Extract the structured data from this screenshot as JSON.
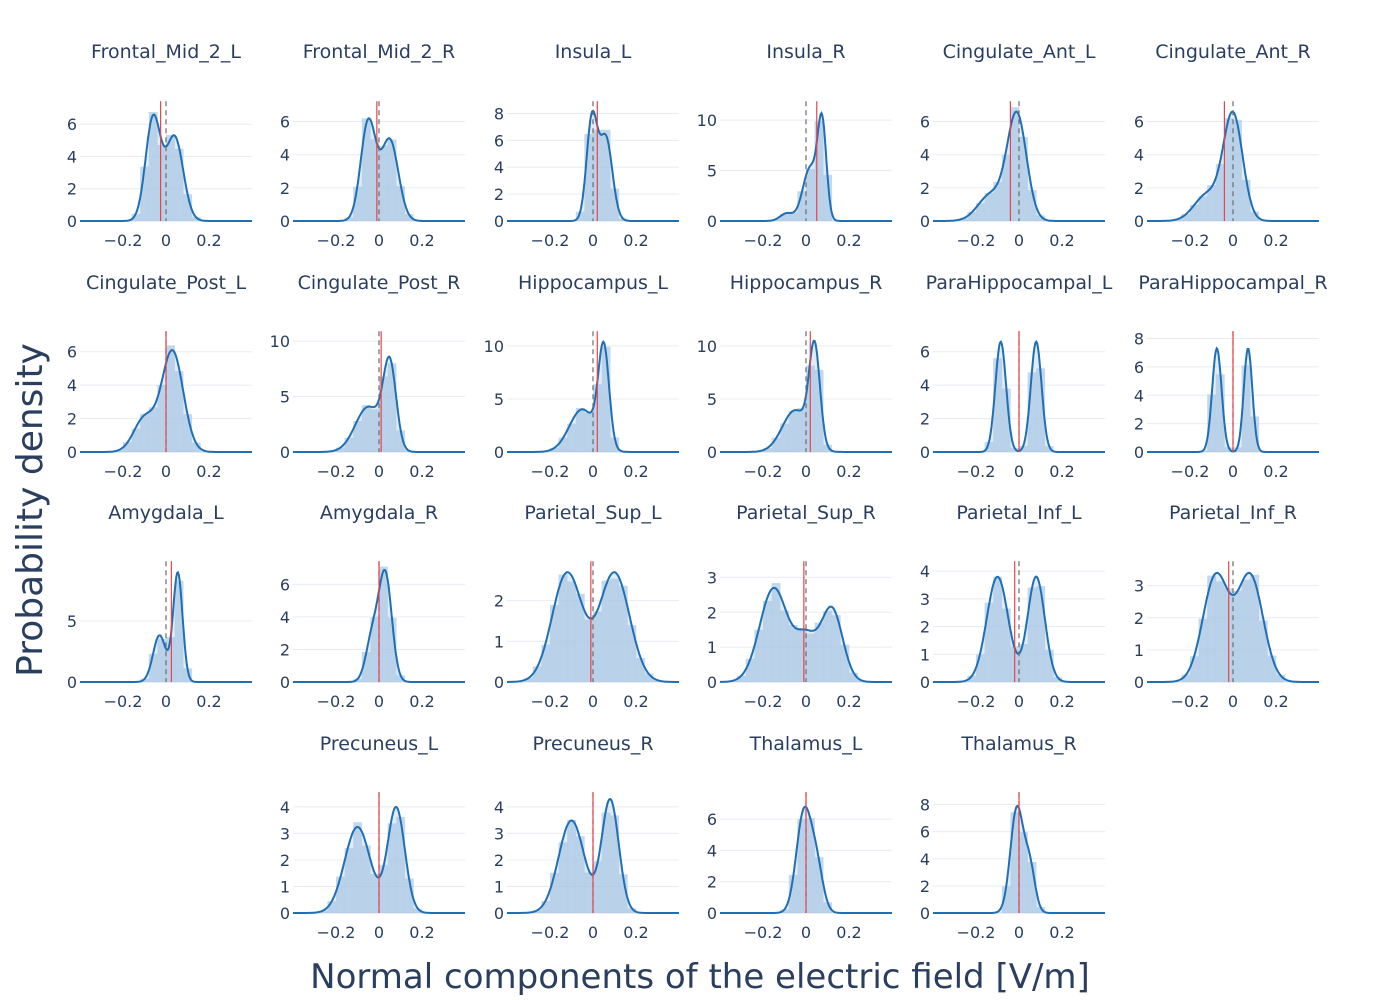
{
  "figure": {
    "xlabel": "Normal components of the electric field [V/m]",
    "ylabel": "Probability density"
  },
  "colors": {
    "kde": "#1f6fb4",
    "hist": "#a9c8e4",
    "mean": "#e8434a",
    "zero": "#6b6b6b",
    "grid": "#e8ecf2",
    "text": "#2a3f5f"
  },
  "chart_data": [
    {
      "type": "area",
      "title": "Frontal_Mid_2_L",
      "xlim": [
        -0.4,
        0.4
      ],
      "x_ticks": [
        -0.2,
        0,
        0.2
      ],
      "y_ticks": [
        0,
        2,
        4,
        6
      ],
      "ymax": 7.5,
      "mean": -0.025,
      "kde": [
        {
          "mu": -0.06,
          "sigma": 0.035,
          "w": 0.55
        },
        {
          "mu": 0.04,
          "sigma": 0.04,
          "w": 0.45
        }
      ],
      "peaks": [
        {
          "x": -0.06,
          "y": 6.6
        },
        {
          "x": 0.04,
          "y": 4.9
        }
      ]
    },
    {
      "type": "area",
      "title": "Frontal_Mid_2_R",
      "xlim": [
        -0.4,
        0.4
      ],
      "x_ticks": [
        -0.2,
        0,
        0.2
      ],
      "y_ticks": [
        0,
        2,
        4,
        6
      ],
      "ymax": 7.3,
      "mean": -0.01,
      "kde": [
        {
          "mu": -0.05,
          "sigma": 0.035,
          "w": 0.55
        },
        {
          "mu": 0.05,
          "sigma": 0.04,
          "w": 0.45
        }
      ],
      "peaks": [
        {
          "x": -0.05,
          "y": 6.2
        },
        {
          "x": 0.05,
          "y": 5.1
        }
      ]
    },
    {
      "type": "area",
      "title": "Insula_L",
      "xlim": [
        -0.4,
        0.4
      ],
      "x_ticks": [
        -0.2,
        0,
        0.2
      ],
      "y_ticks": [
        0,
        2,
        4,
        6,
        8
      ],
      "ymax": 9.0,
      "mean": 0.02,
      "kde": [
        {
          "mu": -0.005,
          "sigma": 0.025,
          "w": 0.55
        },
        {
          "mu": 0.06,
          "sigma": 0.03,
          "w": 0.45
        }
      ],
      "peaks": [
        {
          "x": -0.005,
          "y": 8.2
        },
        {
          "x": 0.06,
          "y": 5.9
        }
      ]
    },
    {
      "type": "area",
      "title": "Insula_R",
      "xlim": [
        -0.4,
        0.4
      ],
      "x_ticks": [
        -0.2,
        0,
        0.2
      ],
      "y_ticks": [
        0,
        5,
        10
      ],
      "ymax": 12.0,
      "mean": 0.05,
      "kde": [
        {
          "mu": 0.075,
          "sigma": 0.02,
          "w": 0.6
        },
        {
          "mu": 0.02,
          "sigma": 0.035,
          "w": 0.35
        },
        {
          "mu": -0.09,
          "sigma": 0.03,
          "w": 0.05
        }
      ],
      "peaks": [
        {
          "x": 0.075,
          "y": 10.7
        },
        {
          "x": 0.0,
          "y": 6.0
        }
      ]
    },
    {
      "type": "area",
      "title": "Cingulate_Ant_L",
      "xlim": [
        -0.4,
        0.4
      ],
      "x_ticks": [
        -0.2,
        0,
        0.2
      ],
      "y_ticks": [
        0,
        2,
        4,
        6
      ],
      "ymax": 7.3,
      "mean": -0.04,
      "kde": [
        {
          "mu": -0.01,
          "sigma": 0.045,
          "w": 0.8
        },
        {
          "mu": -0.13,
          "sigma": 0.06,
          "w": 0.2
        }
      ],
      "peaks": [
        {
          "x": -0.01,
          "y": 6.6
        }
      ]
    },
    {
      "type": "area",
      "title": "Cingulate_Ant_R",
      "xlim": [
        -0.4,
        0.4
      ],
      "x_ticks": [
        -0.2,
        0,
        0.2
      ],
      "y_ticks": [
        0,
        2,
        4,
        6
      ],
      "ymax": 7.3,
      "mean": -0.04,
      "kde": [
        {
          "mu": 0.0,
          "sigma": 0.045,
          "w": 0.8
        },
        {
          "mu": -0.12,
          "sigma": 0.06,
          "w": 0.2
        }
      ],
      "peaks": [
        {
          "x": 0.0,
          "y": 6.6
        }
      ]
    },
    {
      "type": "area",
      "title": "Cingulate_Post_L",
      "xlim": [
        -0.4,
        0.4
      ],
      "x_ticks": [
        -0.2,
        0,
        0.2
      ],
      "y_ticks": [
        0,
        2,
        4,
        6
      ],
      "ymax": 7.3,
      "mean": 0.0,
      "kde": [
        {
          "mu": 0.03,
          "sigma": 0.05,
          "w": 0.75
        },
        {
          "mu": -0.1,
          "sigma": 0.05,
          "w": 0.25
        }
      ],
      "peaks": [
        {
          "x": 0.03,
          "y": 6.1
        }
      ]
    },
    {
      "type": "area",
      "title": "Cingulate_Post_R",
      "xlim": [
        -0.4,
        0.4
      ],
      "x_ticks": [
        -0.2,
        0,
        0.2
      ],
      "y_ticks": [
        0,
        5,
        10
      ],
      "ymax": 11.0,
      "mean": 0.01,
      "kde": [
        {
          "mu": 0.05,
          "sigma": 0.03,
          "w": 0.65
        },
        {
          "mu": -0.05,
          "sigma": 0.06,
          "w": 0.35
        }
      ],
      "peaks": [
        {
          "x": 0.05,
          "y": 8.6
        }
      ]
    },
    {
      "type": "area",
      "title": "Hippocampus_L",
      "xlim": [
        -0.4,
        0.4
      ],
      "x_ticks": [
        -0.2,
        0,
        0.2
      ],
      "y_ticks": [
        0,
        5,
        10
      ],
      "ymax": 11.5,
      "mean": 0.02,
      "kde": [
        {
          "mu": 0.05,
          "sigma": 0.025,
          "w": 0.7
        },
        {
          "mu": -0.05,
          "sigma": 0.06,
          "w": 0.3
        }
      ],
      "peaks": [
        {
          "x": 0.05,
          "y": 10.4
        }
      ]
    },
    {
      "type": "area",
      "title": "Hippocampus_R",
      "xlim": [
        -0.4,
        0.4
      ],
      "x_ticks": [
        -0.2,
        0,
        0.2
      ],
      "y_ticks": [
        0,
        5,
        10
      ],
      "ymax": 11.5,
      "mean": 0.02,
      "kde": [
        {
          "mu": 0.04,
          "sigma": 0.025,
          "w": 0.7
        },
        {
          "mu": -0.05,
          "sigma": 0.06,
          "w": 0.3
        }
      ],
      "peaks": [
        {
          "x": 0.04,
          "y": 10.5
        }
      ]
    },
    {
      "type": "area",
      "title": "ParaHippocampal_L",
      "xlim": [
        -0.4,
        0.4
      ],
      "x_ticks": [
        -0.2,
        0,
        0.2
      ],
      "y_ticks": [
        0,
        2,
        4,
        6
      ],
      "ymax": 7.3,
      "mean": 0.0,
      "kde": [
        {
          "mu": -0.085,
          "sigma": 0.025,
          "w": 0.5
        },
        {
          "mu": 0.08,
          "sigma": 0.025,
          "w": 0.5
        }
      ],
      "peaks": [
        {
          "x": -0.085,
          "y": 5.9
        },
        {
          "x": 0.08,
          "y": 6.6
        }
      ]
    },
    {
      "type": "area",
      "title": "ParaHippocampal_R",
      "xlim": [
        -0.4,
        0.4
      ],
      "x_ticks": [
        -0.2,
        0,
        0.2
      ],
      "y_ticks": [
        0,
        2,
        4,
        6,
        8
      ],
      "ymax": 8.6,
      "mean": 0.0,
      "kde": [
        {
          "mu": -0.075,
          "sigma": 0.022,
          "w": 0.5
        },
        {
          "mu": 0.07,
          "sigma": 0.02,
          "w": 0.5
        }
      ],
      "peaks": [
        {
          "x": -0.075,
          "y": 5.9
        },
        {
          "x": 0.07,
          "y": 7.3
        }
      ]
    },
    {
      "type": "area",
      "title": "Amygdala_L",
      "xlim": [
        -0.4,
        0.4
      ],
      "x_ticks": [
        -0.2,
        0,
        0.2
      ],
      "y_ticks": [
        0,
        5
      ],
      "ymax": 10.0,
      "mean": 0.025,
      "kde": [
        {
          "mu": 0.055,
          "sigma": 0.022,
          "w": 0.7
        },
        {
          "mu": -0.03,
          "sigma": 0.03,
          "w": 0.3
        }
      ],
      "peaks": [
        {
          "x": 0.055,
          "y": 9.0
        },
        {
          "x": -0.03,
          "y": 3.9
        }
      ]
    },
    {
      "type": "area",
      "title": "Amygdala_R",
      "xlim": [
        -0.4,
        0.4
      ],
      "x_ticks": [
        -0.2,
        0,
        0.2
      ],
      "y_ticks": [
        0,
        2,
        4,
        6
      ],
      "ymax": 7.5,
      "mean": 0.0,
      "kde": [
        {
          "mu": 0.03,
          "sigma": 0.03,
          "w": 0.7
        },
        {
          "mu": -0.03,
          "sigma": 0.03,
          "w": 0.3
        }
      ],
      "peaks": [
        {
          "x": 0.03,
          "y": 6.9
        }
      ]
    },
    {
      "type": "area",
      "title": "Parietal_Sup_L",
      "xlim": [
        -0.4,
        0.4
      ],
      "x_ticks": [
        -0.2,
        0,
        0.2
      ],
      "y_ticks": [
        0,
        1,
        2
      ],
      "ymax": 3.0,
      "mean": -0.01,
      "kde": [
        {
          "mu": -0.12,
          "sigma": 0.07,
          "w": 0.5
        },
        {
          "mu": 0.1,
          "sigma": 0.07,
          "w": 0.5
        }
      ],
      "peaks": [
        {
          "x": -0.12,
          "y": 2.7
        },
        {
          "x": 0.1,
          "y": 2.7
        }
      ]
    },
    {
      "type": "area",
      "title": "Parietal_Sup_R",
      "xlim": [
        -0.4,
        0.4
      ],
      "x_ticks": [
        -0.2,
        0,
        0.2
      ],
      "y_ticks": [
        0,
        1,
        2,
        3
      ],
      "ymax": 3.5,
      "mean": -0.01,
      "kde": [
        {
          "mu": -0.15,
          "sigma": 0.065,
          "w": 0.45
        },
        {
          "mu": 0.12,
          "sigma": 0.05,
          "w": 0.35
        },
        {
          "mu": 0.0,
          "sigma": 0.05,
          "w": 0.2
        }
      ],
      "peaks": [
        {
          "x": -0.15,
          "y": 2.5
        },
        {
          "x": 0.12,
          "y": 2.7
        }
      ]
    },
    {
      "type": "area",
      "title": "Parietal_Inf_L",
      "xlim": [
        -0.4,
        0.4
      ],
      "x_ticks": [
        -0.2,
        0,
        0.2
      ],
      "y_ticks": [
        0,
        1,
        2,
        3,
        4
      ],
      "ymax": 4.4,
      "mean": -0.02,
      "kde": [
        {
          "mu": -0.1,
          "sigma": 0.05,
          "w": 0.5
        },
        {
          "mu": 0.08,
          "sigma": 0.04,
          "w": 0.5
        }
      ],
      "peaks": [
        {
          "x": -0.1,
          "y": 3.8
        },
        {
          "x": 0.08,
          "y": 3.6
        }
      ]
    },
    {
      "type": "area",
      "title": "Parietal_Inf_R",
      "xlim": [
        -0.4,
        0.4
      ],
      "x_ticks": [
        -0.2,
        0,
        0.2
      ],
      "y_ticks": [
        0,
        1,
        2,
        3
      ],
      "ymax": 3.8,
      "mean": -0.02,
      "kde": [
        {
          "mu": -0.08,
          "sigma": 0.06,
          "w": 0.5
        },
        {
          "mu": 0.08,
          "sigma": 0.06,
          "w": 0.5
        }
      ],
      "peaks": [
        {
          "x": -0.08,
          "y": 3.4
        },
        {
          "x": 0.08,
          "y": 3.2
        }
      ]
    },
    {
      "type": "area",
      "title": "Precuneus_L",
      "xlim": [
        -0.4,
        0.4
      ],
      "x_ticks": [
        -0.2,
        0,
        0.2
      ],
      "y_ticks": [
        0,
        1,
        2,
        3,
        4
      ],
      "ymax": 4.6,
      "mean": 0.0,
      "kde": [
        {
          "mu": 0.08,
          "sigma": 0.04,
          "w": 0.55
        },
        {
          "mu": -0.1,
          "sigma": 0.06,
          "w": 0.45
        }
      ],
      "peaks": [
        {
          "x": 0.08,
          "y": 4.0
        },
        {
          "x": -0.1,
          "y": 2.6
        }
      ]
    },
    {
      "type": "area",
      "title": "Precuneus_R",
      "xlim": [
        -0.4,
        0.4
      ],
      "x_ticks": [
        -0.2,
        0,
        0.2
      ],
      "y_ticks": [
        0,
        1,
        2,
        3,
        4
      ],
      "ymax": 4.6,
      "mean": 0.0,
      "kde": [
        {
          "mu": 0.08,
          "sigma": 0.04,
          "w": 0.55
        },
        {
          "mu": -0.1,
          "sigma": 0.06,
          "w": 0.45
        }
      ],
      "peaks": [
        {
          "x": 0.08,
          "y": 4.3
        },
        {
          "x": -0.1,
          "y": 2.5
        }
      ]
    },
    {
      "type": "area",
      "title": "Thalamus_L",
      "xlim": [
        -0.4,
        0.4
      ],
      "x_ticks": [
        -0.2,
        0,
        0.2
      ],
      "y_ticks": [
        0,
        2,
        4,
        6
      ],
      "ymax": 7.8,
      "mean": 0.0,
      "kde": [
        {
          "mu": -0.01,
          "sigma": 0.035,
          "w": 0.7
        },
        {
          "mu": 0.05,
          "sigma": 0.03,
          "w": 0.3
        }
      ],
      "peaks": [
        {
          "x": 0.0,
          "y": 6.8
        }
      ]
    },
    {
      "type": "area",
      "title": "Thalamus_R",
      "xlim": [
        -0.4,
        0.4
      ],
      "x_ticks": [
        -0.2,
        0,
        0.2
      ],
      "y_ticks": [
        0,
        2,
        4,
        6,
        8
      ],
      "ymax": 9.0,
      "mean": 0.0,
      "kde": [
        {
          "mu": -0.01,
          "sigma": 0.03,
          "w": 0.7
        },
        {
          "mu": 0.05,
          "sigma": 0.025,
          "w": 0.3
        }
      ],
      "peaks": [
        {
          "x": 0.0,
          "y": 7.9
        }
      ]
    }
  ]
}
